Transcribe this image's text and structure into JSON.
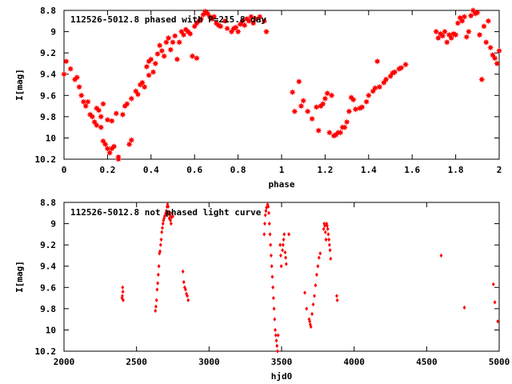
{
  "chart_data": [
    {
      "type": "scatter",
      "title": "112526-5012.8 phased with P=215.8 day",
      "xlabel": "phase",
      "ylabel": "I[mag]",
      "xlim": [
        0,
        2
      ],
      "ylim": [
        10.2,
        8.8
      ],
      "y_inverted": true,
      "grid": false,
      "x_ticks": [
        "0",
        "0.2",
        "0.4",
        "0.6",
        "0.8",
        "1",
        "1.2",
        "1.4",
        "1.6",
        "1.8",
        "2"
      ],
      "y_ticks": [
        "8.8",
        "9",
        "9.2",
        "9.4",
        "9.6",
        "9.8",
        "10",
        "10.2"
      ],
      "marker": "filled-star",
      "color": "#ff0000",
      "points": [
        [
          0.0,
          9.4
        ],
        [
          0.01,
          9.28
        ],
        [
          0.03,
          9.35
        ],
        [
          0.05,
          9.45
        ],
        [
          0.06,
          9.43
        ],
        [
          0.07,
          9.52
        ],
        [
          0.08,
          9.6
        ],
        [
          0.09,
          9.66
        ],
        [
          0.1,
          9.7
        ],
        [
          0.11,
          9.66
        ],
        [
          0.12,
          9.78
        ],
        [
          0.13,
          9.8
        ],
        [
          0.14,
          9.85
        ],
        [
          0.15,
          9.88
        ],
        [
          0.15,
          9.72
        ],
        [
          0.16,
          9.74
        ],
        [
          0.17,
          9.9
        ],
        [
          0.17,
          9.8
        ],
        [
          0.18,
          9.68
        ],
        [
          0.18,
          10.03
        ],
        [
          0.19,
          10.06
        ],
        [
          0.2,
          10.1
        ],
        [
          0.2,
          9.83
        ],
        [
          0.21,
          10.14
        ],
        [
          0.22,
          9.84
        ],
        [
          0.22,
          10.1
        ],
        [
          0.23,
          10.08
        ],
        [
          0.24,
          9.77
        ],
        [
          0.25,
          10.18
        ],
        [
          0.25,
          10.2
        ],
        [
          0.27,
          9.78
        ],
        [
          0.28,
          9.7
        ],
        [
          0.29,
          9.68
        ],
        [
          0.3,
          10.06
        ],
        [
          0.31,
          10.02
        ],
        [
          0.31,
          9.63
        ],
        [
          0.33,
          9.56
        ],
        [
          0.34,
          9.59
        ],
        [
          0.35,
          9.5
        ],
        [
          0.36,
          9.48
        ],
        [
          0.37,
          9.52
        ],
        [
          0.38,
          9.33
        ],
        [
          0.39,
          9.41
        ],
        [
          0.39,
          9.28
        ],
        [
          0.4,
          9.26
        ],
        [
          0.41,
          9.38
        ],
        [
          0.42,
          9.3
        ],
        [
          0.43,
          9.21
        ],
        [
          0.44,
          9.13
        ],
        [
          0.45,
          9.18
        ],
        [
          0.46,
          9.23
        ],
        [
          0.47,
          9.1
        ],
        [
          0.48,
          9.06
        ],
        [
          0.49,
          9.17
        ],
        [
          0.5,
          9.1
        ],
        [
          0.51,
          9.04
        ],
        [
          0.52,
          9.26
        ],
        [
          0.53,
          9.1
        ],
        [
          0.54,
          9.0
        ],
        [
          0.55,
          9.03
        ],
        [
          0.56,
          8.98
        ],
        [
          0.57,
          9.0
        ],
        [
          0.58,
          9.02
        ],
        [
          0.59,
          9.23
        ],
        [
          0.6,
          8.95
        ],
        [
          0.61,
          8.92
        ],
        [
          0.61,
          9.25
        ],
        [
          0.62,
          8.9
        ],
        [
          0.63,
          8.88
        ],
        [
          0.64,
          8.84
        ],
        [
          0.65,
          8.81
        ],
        [
          0.66,
          8.83
        ],
        [
          0.67,
          8.86
        ],
        [
          0.68,
          8.88
        ],
        [
          0.69,
          8.86
        ],
        [
          0.7,
          8.92
        ],
        [
          0.71,
          8.94
        ],
        [
          0.72,
          8.95
        ],
        [
          0.74,
          8.9
        ],
        [
          0.75,
          8.97
        ],
        [
          0.77,
          9.0
        ],
        [
          0.78,
          8.97
        ],
        [
          0.79,
          8.96
        ],
        [
          0.8,
          9.0
        ],
        [
          0.81,
          8.93
        ],
        [
          0.82,
          8.9
        ],
        [
          0.83,
          8.94
        ],
        [
          0.84,
          8.88
        ],
        [
          0.85,
          8.9
        ],
        [
          0.86,
          8.86
        ],
        [
          0.87,
          8.92
        ],
        [
          0.88,
          8.88
        ],
        [
          0.9,
          8.86
        ],
        [
          0.92,
          8.9
        ],
        [
          0.93,
          9.0
        ],
        [
          1.05,
          9.57
        ],
        [
          1.06,
          9.75
        ],
        [
          1.08,
          9.47
        ],
        [
          1.09,
          9.7
        ],
        [
          1.1,
          9.65
        ],
        [
          1.12,
          9.75
        ],
        [
          1.14,
          9.82
        ],
        [
          1.16,
          9.71
        ],
        [
          1.17,
          9.93
        ],
        [
          1.18,
          9.7
        ],
        [
          1.19,
          9.68
        ],
        [
          1.2,
          9.63
        ],
        [
          1.21,
          9.58
        ],
        [
          1.22,
          9.95
        ],
        [
          1.23,
          9.6
        ],
        [
          1.24,
          9.98
        ],
        [
          1.25,
          9.97
        ],
        [
          1.26,
          9.95
        ],
        [
          1.27,
          9.95
        ],
        [
          1.28,
          9.9
        ],
        [
          1.29,
          9.9
        ],
        [
          1.3,
          9.85
        ],
        [
          1.31,
          9.75
        ],
        [
          1.32,
          9.62
        ],
        [
          1.33,
          9.64
        ],
        [
          1.34,
          9.73
        ],
        [
          1.36,
          9.72
        ],
        [
          1.37,
          9.71
        ],
        [
          1.39,
          9.66
        ],
        [
          1.4,
          9.6
        ],
        [
          1.42,
          9.56
        ],
        [
          1.43,
          9.53
        ],
        [
          1.44,
          9.28
        ],
        [
          1.45,
          9.52
        ],
        [
          1.47,
          9.48
        ],
        [
          1.48,
          9.45
        ],
        [
          1.5,
          9.42
        ],
        [
          1.51,
          9.39
        ],
        [
          1.52,
          9.38
        ],
        [
          1.54,
          9.35
        ],
        [
          1.55,
          9.34
        ],
        [
          1.57,
          9.31
        ],
        [
          1.71,
          9.0
        ],
        [
          1.72,
          9.06
        ],
        [
          1.73,
          9.02
        ],
        [
          1.74,
          9.04
        ],
        [
          1.75,
          9.0
        ],
        [
          1.76,
          9.1
        ],
        [
          1.77,
          9.03
        ],
        [
          1.78,
          9.06
        ],
        [
          1.79,
          9.02
        ],
        [
          1.8,
          9.03
        ],
        [
          1.81,
          8.92
        ],
        [
          1.82,
          8.87
        ],
        [
          1.83,
          8.9
        ],
        [
          1.84,
          8.86
        ],
        [
          1.85,
          9.05
        ],
        [
          1.86,
          9.0
        ],
        [
          1.87,
          8.85
        ],
        [
          1.88,
          8.8
        ],
        [
          1.89,
          8.83
        ],
        [
          1.9,
          8.82
        ],
        [
          1.91,
          9.03
        ],
        [
          1.92,
          9.45
        ],
        [
          1.93,
          8.95
        ],
        [
          1.94,
          9.1
        ],
        [
          1.95,
          8.9
        ],
        [
          1.96,
          9.15
        ],
        [
          1.97,
          9.22
        ],
        [
          1.98,
          9.25
        ],
        [
          1.99,
          9.3
        ],
        [
          2.0,
          9.18
        ]
      ]
    },
    {
      "type": "scatter",
      "title": "112526-5012.8 not phased light curve",
      "xlabel": "hjd0",
      "ylabel": "I[mag]",
      "xlim": [
        2000,
        5000
      ],
      "ylim": [
        10.2,
        8.8
      ],
      "y_inverted": true,
      "grid": false,
      "x_ticks": [
        "2000",
        "2500",
        "3000",
        "3500",
        "4000",
        "4500",
        "5000"
      ],
      "y_ticks": [
        "8.8",
        "9",
        "9.2",
        "9.4",
        "9.6",
        "9.8",
        "10",
        "10.2"
      ],
      "marker": "filled-diamond",
      "color": "#ff0000",
      "points": [
        [
          2400,
          9.7
        ],
        [
          2402,
          9.68
        ],
        [
          2404,
          9.6
        ],
        [
          2406,
          9.64
        ],
        [
          2408,
          9.72
        ],
        [
          2630,
          9.82
        ],
        [
          2634,
          9.78
        ],
        [
          2638,
          9.72
        ],
        [
          2642,
          9.62
        ],
        [
          2646,
          9.56
        ],
        [
          2650,
          9.48
        ],
        [
          2654,
          9.4
        ],
        [
          2658,
          9.28
        ],
        [
          2662,
          9.26
        ],
        [
          2666,
          9.2
        ],
        [
          2670,
          9.15
        ],
        [
          2674,
          9.08
        ],
        [
          2678,
          9.04
        ],
        [
          2682,
          9.0
        ],
        [
          2686,
          8.97
        ],
        [
          2690,
          8.95
        ],
        [
          2694,
          8.93
        ],
        [
          2698,
          8.92
        ],
        [
          2702,
          8.9
        ],
        [
          2706,
          8.88
        ],
        [
          2710,
          8.84
        ],
        [
          2714,
          8.82
        ],
        [
          2718,
          8.84
        ],
        [
          2722,
          8.9
        ],
        [
          2726,
          8.95
        ],
        [
          2730,
          8.92
        ],
        [
          2734,
          8.97
        ],
        [
          2738,
          9.0
        ],
        [
          2742,
          8.94
        ],
        [
          2746,
          8.9
        ],
        [
          2750,
          8.93
        ],
        [
          2820,
          9.45
        ],
        [
          2826,
          9.55
        ],
        [
          2832,
          9.6
        ],
        [
          2838,
          9.62
        ],
        [
          2844,
          9.66
        ],
        [
          2850,
          9.68
        ],
        [
          2856,
          9.72
        ],
        [
          3380,
          9.1
        ],
        [
          3384,
          9.0
        ],
        [
          3388,
          8.92
        ],
        [
          3392,
          8.88
        ],
        [
          3396,
          8.85
        ],
        [
          3400,
          8.84
        ],
        [
          3404,
          8.82
        ],
        [
          3408,
          8.84
        ],
        [
          3412,
          8.9
        ],
        [
          3416,
          9.0
        ],
        [
          3420,
          9.1
        ],
        [
          3424,
          9.2
        ],
        [
          3428,
          9.3
        ],
        [
          3432,
          9.4
        ],
        [
          3436,
          9.5
        ],
        [
          3440,
          9.6
        ],
        [
          3444,
          9.7
        ],
        [
          3448,
          9.8
        ],
        [
          3452,
          9.9
        ],
        [
          3456,
          10.0
        ],
        [
          3460,
          10.05
        ],
        [
          3464,
          10.1
        ],
        [
          3468,
          10.15
        ],
        [
          3472,
          10.2
        ],
        [
          3476,
          10.05
        ],
        [
          3490,
          9.2
        ],
        [
          3494,
          9.3
        ],
        [
          3498,
          9.4
        ],
        [
          3506,
          9.25
        ],
        [
          3510,
          9.2
        ],
        [
          3514,
          9.15
        ],
        [
          3518,
          9.1
        ],
        [
          3524,
          9.27
        ],
        [
          3528,
          9.32
        ],
        [
          3532,
          9.38
        ],
        [
          3550,
          9.1
        ],
        [
          3660,
          9.65
        ],
        [
          3672,
          9.8
        ],
        [
          3690,
          9.9
        ],
        [
          3694,
          9.92
        ],
        [
          3698,
          9.95
        ],
        [
          3702,
          9.97
        ],
        [
          3710,
          9.85
        ],
        [
          3718,
          9.76
        ],
        [
          3726,
          9.68
        ],
        [
          3734,
          9.58
        ],
        [
          3742,
          9.48
        ],
        [
          3750,
          9.4
        ],
        [
          3758,
          9.32
        ],
        [
          3766,
          9.28
        ],
        [
          3790,
          9.05
        ],
        [
          3794,
          9.0
        ],
        [
          3798,
          9.02
        ],
        [
          3802,
          9.08
        ],
        [
          3806,
          9.15
        ],
        [
          3810,
          9.0
        ],
        [
          3814,
          9.02
        ],
        [
          3818,
          9.05
        ],
        [
          3822,
          9.1
        ],
        [
          3826,
          9.15
        ],
        [
          3830,
          9.2
        ],
        [
          3834,
          9.25
        ],
        [
          3838,
          9.33
        ],
        [
          3880,
          9.68
        ],
        [
          3884,
          9.72
        ],
        [
          4600,
          9.3
        ],
        [
          4760,
          9.79
        ],
        [
          4960,
          9.57
        ],
        [
          4970,
          9.74
        ],
        [
          4990,
          9.92
        ]
      ]
    }
  ]
}
